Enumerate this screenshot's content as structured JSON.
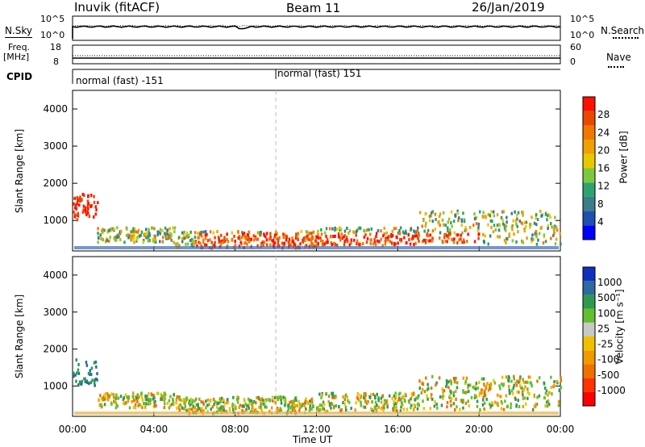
{
  "header": {
    "station": "Inuvik (fitACF)",
    "beam": "Beam 11",
    "date": "26/Jan/2019"
  },
  "top_panels": {
    "nsky": {
      "label": "N.Sky",
      "tick_top": "10^5",
      "tick_bottom": "10^0"
    },
    "nsearch": {
      "label": "N.Search",
      "tick_top": "10^5",
      "tick_bottom": "10^0"
    },
    "freq": {
      "label": "Freq.",
      "unit": "[MHz]",
      "tick_top": "18",
      "tick_bottom": "8"
    },
    "nave": {
      "label": "Nave",
      "tick_top": "60",
      "tick_bottom": "0"
    },
    "cpid": {
      "label": "CPID",
      "segments": [
        {
          "text": "normal (fast) -151",
          "start_hour": 0
        },
        {
          "text": "normal (fast) 151",
          "start_hour": 10
        }
      ]
    }
  },
  "chart_data": [
    {
      "type": "heatmap",
      "name": "Power",
      "ylabel": "Slant Range [km]",
      "ylim": [
        180,
        4500
      ],
      "yticks": [
        "1000",
        "2000",
        "3000",
        "4000"
      ],
      "xlim_hours": [
        0,
        24
      ],
      "colorbar": {
        "label": "Power [dB]",
        "ticks": [
          "28",
          "24",
          "20",
          "16",
          "12",
          "8",
          "4"
        ],
        "colors": [
          "#0000ff",
          "#1f4fb0",
          "#3a7d8c",
          "#2ea26e",
          "#7ec840",
          "#e8c800",
          "#f0a000",
          "#f07800",
          "#e84800",
          "#ff1000"
        ]
      }
    },
    {
      "type": "heatmap",
      "name": "Velocity",
      "ylabel": "Slant Range [km]",
      "ylim": [
        180,
        4500
      ],
      "yticks": [
        "1000",
        "2000",
        "3000",
        "4000"
      ],
      "xlim_hours": [
        0,
        24
      ],
      "colorbar": {
        "label": "Velocity [m s⁻¹]",
        "ticks": [
          "1000",
          "500",
          "100",
          "25",
          "-25",
          "-100",
          "-500",
          "-1000"
        ],
        "colors": [
          "#ff0000",
          "#ff3300",
          "#f07000",
          "#f09a00",
          "#f0c000",
          "#c8c8c8",
          "#60c030",
          "#2e9a50",
          "#2c6aa0",
          "#1030c0"
        ]
      }
    }
  ],
  "xaxis": {
    "ticks": [
      "00:00",
      "04:00",
      "08:00",
      "12:00",
      "16:00",
      "20:00",
      "00:00"
    ],
    "label": "Time UT"
  }
}
